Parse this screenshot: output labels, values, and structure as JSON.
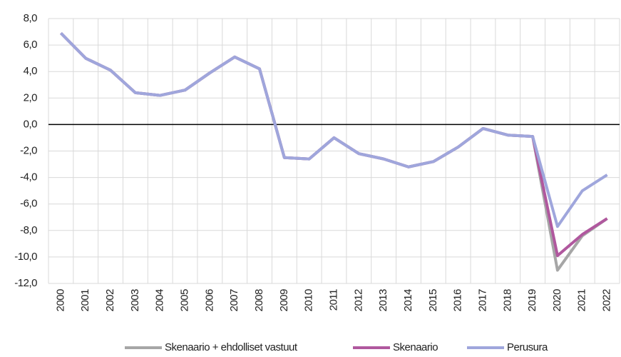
{
  "chart_data": {
    "type": "line",
    "categories": [
      "2000",
      "2001",
      "2002",
      "2003",
      "2004",
      "2005",
      "2006",
      "2007",
      "2008",
      "2009",
      "2010",
      "2011",
      "2012",
      "2013",
      "2014",
      "2015",
      "2016",
      "2017",
      "2018",
      "2019",
      "2020",
      "2021",
      "2022"
    ],
    "series": [
      {
        "name": "Skenaario + ehdolliset vastuut",
        "color": "#a6a6a6",
        "values": [
          6.9,
          5.0,
          4.1,
          2.4,
          2.2,
          2.6,
          3.9,
          5.1,
          4.2,
          -2.5,
          -2.6,
          -1.0,
          -2.2,
          -2.6,
          -3.2,
          -2.8,
          -1.7,
          -0.3,
          -0.8,
          -0.9,
          -11.0,
          -8.4,
          -7.1
        ]
      },
      {
        "name": "Skenaario",
        "color": "#b0589e",
        "values": [
          6.9,
          5.0,
          4.1,
          2.4,
          2.2,
          2.6,
          3.9,
          5.1,
          4.2,
          -2.5,
          -2.6,
          -1.0,
          -2.2,
          -2.6,
          -3.2,
          -2.8,
          -1.7,
          -0.3,
          -0.8,
          -0.9,
          -9.9,
          -8.3,
          -7.1
        ]
      },
      {
        "name": "Perusura",
        "color": "#9fa6dc",
        "values": [
          6.9,
          5.0,
          4.1,
          2.4,
          2.2,
          2.6,
          3.9,
          5.1,
          4.2,
          -2.5,
          -2.6,
          -1.0,
          -2.2,
          -2.6,
          -3.2,
          -2.8,
          -1.7,
          -0.3,
          -0.8,
          -0.9,
          -7.7,
          -5.0,
          -3.8
        ]
      }
    ],
    "ylim": [
      -12,
      8
    ],
    "yticks": [
      {
        "value": 8,
        "label": "8,0"
      },
      {
        "value": 6,
        "label": "6,0"
      },
      {
        "value": 4,
        "label": "4,0"
      },
      {
        "value": 2,
        "label": "2,0"
      },
      {
        "value": 0,
        "label": "0,0"
      },
      {
        "value": -2,
        "label": "-2,0"
      },
      {
        "value": -4,
        "label": "-4,0"
      },
      {
        "value": -6,
        "label": "-6,0"
      },
      {
        "value": -8,
        "label": "-8,0"
      },
      {
        "value": -10,
        "label": "-10,0"
      },
      {
        "value": -12,
        "label": "-12,0"
      }
    ],
    "grid": true,
    "legend": "bottom"
  }
}
